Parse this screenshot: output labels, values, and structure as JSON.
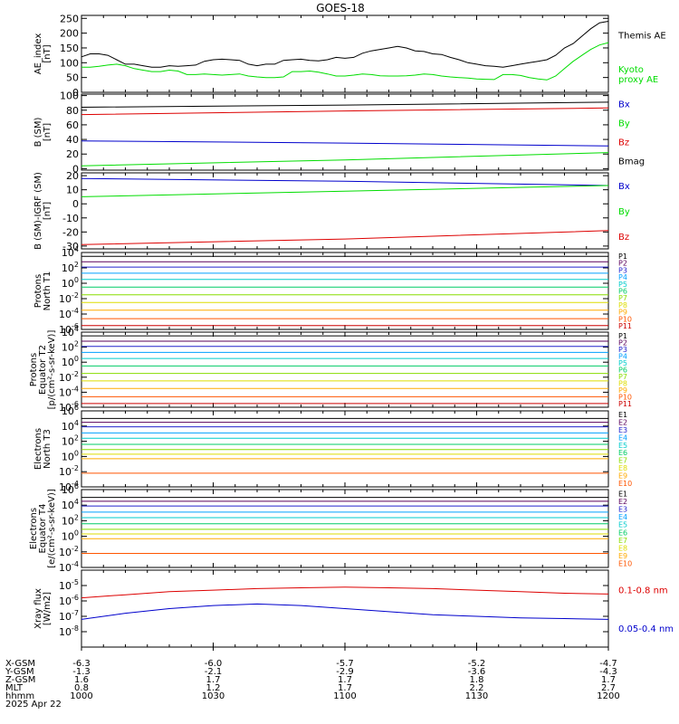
{
  "title": "GOES-18",
  "date_label": "2025 Apr 22",
  "colors": {
    "black": "#000000",
    "green": "#00dd00",
    "red": "#dd0000",
    "blue": "#0000cc"
  },
  "energy_colors": [
    "#000000",
    "#5a005a",
    "#2222cc",
    "#00a0ff",
    "#00cccc",
    "#00cc66",
    "#88dd00",
    "#dddd00",
    "#ffaa00",
    "#ff5500",
    "#cc0000"
  ],
  "chart_data": [
    {
      "id": "ae",
      "type": "line",
      "ylabel": "AE_index\n[nT]",
      "ylim": [
        0,
        260
      ],
      "yticks": [
        "0",
        "50",
        "100",
        "150",
        "200",
        "250"
      ],
      "ytick_values": [
        0,
        50,
        100,
        150,
        200,
        250
      ],
      "x": [
        0,
        2,
        4,
        6,
        8,
        10,
        12,
        14,
        16,
        18,
        20,
        22,
        24,
        26,
        28,
        30,
        32,
        34,
        36,
        38,
        40,
        42,
        44,
        46,
        48,
        50,
        52,
        54,
        56,
        58,
        60,
        62,
        64,
        66,
        68,
        70,
        72,
        74,
        76,
        78,
        80,
        82,
        84,
        86,
        88,
        90,
        92,
        94,
        96,
        98,
        100,
        102,
        104,
        106,
        108,
        110,
        112,
        114,
        116,
        118,
        120
      ],
      "series": [
        {
          "name": "Themis AE",
          "color": "#000000",
          "values": [
            120,
            130,
            130,
            125,
            110,
            95,
            95,
            90,
            85,
            85,
            90,
            88,
            90,
            92,
            105,
            110,
            112,
            110,
            108,
            95,
            90,
            95,
            95,
            108,
            110,
            112,
            108,
            106,
            110,
            118,
            115,
            118,
            132,
            140,
            145,
            150,
            155,
            150,
            140,
            138,
            130,
            128,
            118,
            110,
            100,
            95,
            90,
            88,
            85,
            90,
            95,
            100,
            105,
            110,
            125,
            150,
            165,
            190,
            215,
            235,
            240
          ]
        },
        {
          "name": "Kyoto\nproxy AE",
          "color": "#00dd00",
          "values": [
            85,
            85,
            88,
            92,
            95,
            90,
            80,
            75,
            70,
            70,
            75,
            72,
            60,
            60,
            62,
            60,
            58,
            60,
            62,
            55,
            52,
            50,
            50,
            52,
            70,
            70,
            72,
            68,
            62,
            55,
            55,
            58,
            62,
            60,
            56,
            55,
            55,
            56,
            58,
            62,
            60,
            55,
            52,
            50,
            48,
            45,
            44,
            43,
            60,
            60,
            57,
            50,
            45,
            42,
            55,
            80,
            105,
            125,
            145,
            160,
            168
          ]
        }
      ]
    },
    {
      "id": "b_sm",
      "type": "line",
      "ylabel": "B (SM)\n[nT]",
      "ylim": [
        -2,
        102
      ],
      "yticks": [
        "0",
        "20",
        "40",
        "60",
        "80",
        "100"
      ],
      "ytick_values": [
        0,
        20,
        40,
        60,
        80,
        100
      ],
      "x": [
        0,
        60,
        120
      ],
      "series": [
        {
          "name": "Bx",
          "color": "#0000cc",
          "values": [
            38,
            35,
            31
          ]
        },
        {
          "name": "By",
          "color": "#00dd00",
          "values": [
            4,
            12,
            22
          ]
        },
        {
          "name": "Bz",
          "color": "#dd0000",
          "values": [
            74,
            79,
            83
          ]
        },
        {
          "name": "Bmag",
          "color": "#000000",
          "values": [
            84,
            87,
            91
          ]
        }
      ]
    },
    {
      "id": "b_igrf",
      "type": "line",
      "ylabel": "B (SM)-IGRF (SM)\n[nT]",
      "ylim": [
        -32,
        22
      ],
      "yticks": [
        "-30",
        "-20",
        "-10",
        "0",
        "10",
        "20"
      ],
      "ytick_values": [
        -30,
        -20,
        -10,
        0,
        10,
        20
      ],
      "x": [
        0,
        60,
        120
      ],
      "series": [
        {
          "name": "Bx",
          "color": "#0000cc",
          "values": [
            18,
            16,
            13
          ]
        },
        {
          "name": "By",
          "color": "#00dd00",
          "values": [
            5,
            9,
            13
          ]
        },
        {
          "name": "Bz",
          "color": "#dd0000",
          "values": [
            -29,
            -25,
            -19
          ]
        }
      ]
    },
    {
      "id": "prot_n",
      "type": "line",
      "log": true,
      "ylabel": "Protons\nNorth T1",
      "ylim": [
        -6,
        4
      ],
      "yticks": [
        "10^4",
        "10^2",
        "10^0",
        "10^-2",
        "10^-4",
        "10^-6"
      ],
      "ytick_values": [
        4,
        2,
        0,
        -2,
        -4,
        -6
      ],
      "x": [
        0,
        60,
        120
      ],
      "series": [
        {
          "name": "P1",
          "values": [
            3.5,
            3.5,
            3.5
          ]
        },
        {
          "name": "P2",
          "values": [
            2.8,
            2.8,
            2.8
          ]
        },
        {
          "name": "P3",
          "values": [
            2.1,
            2.1,
            2.1
          ]
        },
        {
          "name": "P4",
          "values": [
            1.3,
            1.3,
            1.3
          ]
        },
        {
          "name": "P5",
          "values": [
            0.5,
            0.5,
            0.5
          ]
        },
        {
          "name": "P6",
          "values": [
            -0.5,
            -0.5,
            -0.5
          ]
        },
        {
          "name": "P7",
          "values": [
            -1.5,
            -1.5,
            -1.5
          ]
        },
        {
          "name": "P8",
          "values": [
            -2.5,
            -2.5,
            -2.5
          ]
        },
        {
          "name": "P9",
          "values": [
            -3.5,
            -3.5,
            -3.5
          ]
        },
        {
          "name": "P10",
          "values": [
            -4.6,
            -4.6,
            -4.6
          ]
        },
        {
          "name": "P11",
          "values": [
            -5.5,
            -5.5,
            -5.5
          ]
        }
      ]
    },
    {
      "id": "prot_e",
      "type": "line",
      "log": true,
      "ylabel": "Protons\nEquator T2\n[p/(cm²-s-sr-keV)]",
      "ylim": [
        -6,
        4
      ],
      "yticks": [
        "10^4",
        "10^2",
        "10^0",
        "10^-2",
        "10^-4",
        "10^-6"
      ],
      "ytick_values": [
        4,
        2,
        0,
        -2,
        -4,
        -6
      ],
      "x": [
        0,
        60,
        120
      ],
      "series": [
        {
          "name": "P1",
          "values": [
            3.5,
            3.5,
            3.5
          ]
        },
        {
          "name": "P2",
          "values": [
            2.8,
            2.8,
            2.8
          ]
        },
        {
          "name": "P3",
          "values": [
            2.1,
            2.1,
            2.1
          ]
        },
        {
          "name": "P4",
          "values": [
            1.3,
            1.3,
            1.3
          ]
        },
        {
          "name": "P5",
          "values": [
            0.5,
            0.5,
            0.5
          ]
        },
        {
          "name": "P6",
          "values": [
            -0.5,
            -0.5,
            -0.5
          ]
        },
        {
          "name": "P7",
          "values": [
            -1.5,
            -1.5,
            -1.5
          ]
        },
        {
          "name": "P8",
          "values": [
            -2.5,
            -2.5,
            -2.5
          ]
        },
        {
          "name": "P9",
          "values": [
            -3.5,
            -3.5,
            -3.5
          ]
        },
        {
          "name": "P10",
          "values": [
            -4.6,
            -4.6,
            -4.6
          ]
        },
        {
          "name": "P11",
          "values": [
            -5.5,
            -5.5,
            -5.5
          ]
        }
      ]
    },
    {
      "id": "elec_n",
      "type": "line",
      "log": true,
      "ylabel": "Electrons\nNorth T3",
      "ylim": [
        -4,
        6
      ],
      "yticks": [
        "10^6",
        "10^4",
        "10^2",
        "10^0",
        "10^-2",
        "10^-4"
      ],
      "ytick_values": [
        6,
        4,
        2,
        0,
        -2,
        -4
      ],
      "x": [
        0,
        60,
        120
      ],
      "series": [
        {
          "name": "E1",
          "values": [
            5.0,
            5.0,
            5.0
          ]
        },
        {
          "name": "E2",
          "values": [
            4.5,
            4.5,
            4.5
          ]
        },
        {
          "name": "E3",
          "values": [
            3.9,
            3.9,
            3.9
          ]
        },
        {
          "name": "E4",
          "values": [
            3.1,
            3.1,
            3.1
          ]
        },
        {
          "name": "E5",
          "values": [
            2.4,
            2.4,
            2.4
          ]
        },
        {
          "name": "E6",
          "values": [
            1.6,
            1.6,
            1.6
          ]
        },
        {
          "name": "E7",
          "values": [
            0.9,
            0.9,
            0.9
          ]
        },
        {
          "name": "E8",
          "values": [
            0.3,
            0.3,
            0.3
          ]
        },
        {
          "name": "E9",
          "values": [
            -0.3,
            -0.3,
            -0.3
          ]
        },
        {
          "name": "E10",
          "values": [
            -2.2,
            -2.2,
            -2.2
          ]
        }
      ]
    },
    {
      "id": "elec_e",
      "type": "line",
      "log": true,
      "ylabel": "Electrons\nEquator T4\n[e/(cm²-s-sr-keV)]",
      "ylim": [
        -4,
        6
      ],
      "yticks": [
        "10^6",
        "10^4",
        "10^2",
        "10^0",
        "10^-2",
        "10^-4"
      ],
      "ytick_values": [
        6,
        4,
        2,
        0,
        -2,
        -4
      ],
      "x": [
        0,
        60,
        120
      ],
      "series": [
        {
          "name": "E1",
          "values": [
            5.0,
            5.0,
            5.0
          ]
        },
        {
          "name": "E2",
          "values": [
            4.5,
            4.5,
            4.5
          ]
        },
        {
          "name": "E3",
          "values": [
            3.9,
            3.9,
            3.9
          ]
        },
        {
          "name": "E4",
          "values": [
            3.1,
            3.1,
            3.1
          ]
        },
        {
          "name": "E5",
          "values": [
            2.4,
            2.4,
            2.4
          ]
        },
        {
          "name": "E6",
          "values": [
            1.6,
            1.6,
            1.6
          ]
        },
        {
          "name": "E7",
          "values": [
            0.9,
            0.9,
            0.9
          ]
        },
        {
          "name": "E8",
          "values": [
            0.3,
            0.3,
            0.3
          ]
        },
        {
          "name": "E9",
          "values": [
            -0.3,
            -0.3,
            -0.3
          ]
        },
        {
          "name": "E10",
          "values": [
            -2.2,
            -2.2,
            -2.2
          ]
        }
      ]
    },
    {
      "id": "xray",
      "type": "line",
      "log": true,
      "ylabel": "Xray flux\n[W/m2]",
      "ylim": [
        -9,
        -4
      ],
      "yticks": [
        "10^-5",
        "10^-6",
        "10^-7",
        "10^-8"
      ],
      "ytick_values": [
        -5,
        -6,
        -7,
        -8
      ],
      "x": [
        0,
        10,
        20,
        30,
        40,
        50,
        60,
        70,
        80,
        90,
        100,
        110,
        120
      ],
      "series": [
        {
          "name": "0.1-0.8 nm",
          "color": "#dd0000",
          "values": [
            -5.8,
            -5.6,
            -5.4,
            -5.3,
            -5.2,
            -5.15,
            -5.1,
            -5.15,
            -5.2,
            -5.3,
            -5.4,
            -5.5,
            -5.55
          ]
        },
        {
          "name": "0.05-0.4 nm",
          "color": "#0000cc",
          "values": [
            -7.2,
            -6.8,
            -6.5,
            -6.3,
            -6.2,
            -6.3,
            -6.5,
            -6.7,
            -6.9,
            -7.0,
            -7.1,
            -7.15,
            -7.2
          ]
        }
      ]
    }
  ],
  "ephemeris": {
    "labels": [
      "X-GSM",
      "Y-GSM",
      "Z-GSM",
      "MLT",
      "hhmm"
    ],
    "date": "2025 Apr 22",
    "columns": [
      {
        "t": 0,
        "values": [
          "-6.3",
          "-1.3",
          "1.6",
          "0.8",
          "1000"
        ]
      },
      {
        "t": 30,
        "values": [
          "-6.0",
          "-2.1",
          "1.7",
          "1.2",
          "1030"
        ]
      },
      {
        "t": 60,
        "values": [
          "-5.7",
          "-2.9",
          "1.7",
          "1.7",
          "1100"
        ]
      },
      {
        "t": 90,
        "values": [
          "-5.2",
          "-3.6",
          "1.8",
          "2.2",
          "1130"
        ]
      },
      {
        "t": 120,
        "values": [
          "-4.7",
          "-4.3",
          "1.7",
          "2.7",
          "1200"
        ]
      }
    ]
  }
}
